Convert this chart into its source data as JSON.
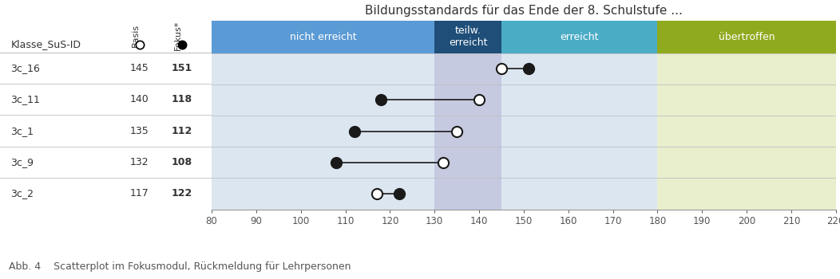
{
  "title": "Bildungsstandards für das Ende der 8. Schulstufe ...",
  "caption": "Abb. 4    Scatterplot im Fokusmodul, Rückmeldung für Lehrpersonen",
  "col1_header": "Klasse_SuS-ID",
  "col2_header": "Basis",
  "col3_header": "Fokus*",
  "students": [
    {
      "id": "3c_16",
      "basis": 145,
      "fokus": 151
    },
    {
      "id": "3c_11",
      "basis": 140,
      "fokus": 118
    },
    {
      "id": "3c_1",
      "basis": 135,
      "fokus": 112
    },
    {
      "id": "3c_9",
      "basis": 132,
      "fokus": 108
    },
    {
      "id": "3c_2",
      "basis": 117,
      "fokus": 122
    }
  ],
  "xmin": 80,
  "xmax": 220,
  "xticks": [
    80,
    90,
    100,
    110,
    120,
    130,
    140,
    150,
    160,
    170,
    180,
    190,
    200,
    210,
    220
  ],
  "zones": [
    {
      "label": "nicht erreicht",
      "xmin": 80,
      "xmax": 130,
      "color": "#5b9bd5",
      "text_color": "#ffffff",
      "multiline": false
    },
    {
      "label": "teilw.\nerreicht",
      "xmin": 130,
      "xmax": 145,
      "color": "#1f4e79",
      "text_color": "#ffffff",
      "multiline": true
    },
    {
      "label": "erreicht",
      "xmin": 145,
      "xmax": 180,
      "color": "#4bacc6",
      "text_color": "#ffffff",
      "multiline": false
    },
    {
      "label": "übertroffen",
      "xmin": 180,
      "xmax": 220,
      "color": "#8faa1e",
      "text_color": "#ffffff",
      "multiline": false
    }
  ],
  "zone_bg": [
    {
      "xmin": 80,
      "xmax": 130,
      "color": "#dce6f1"
    },
    {
      "xmin": 130,
      "xmax": 145,
      "color": "#c5cae0"
    },
    {
      "xmin": 145,
      "xmax": 180,
      "color": "#dce6f1"
    },
    {
      "xmin": 180,
      "xmax": 220,
      "color": "#e9eecc"
    }
  ],
  "basis_fc": "#ffffff",
  "basis_ec": "#1a1a1a",
  "fokus_fc": "#1a1a1a",
  "fokus_ec": "#1a1a1a",
  "marker_size": 90,
  "line_color": "#1a1a1a",
  "bg_color": "#ffffff",
  "sep_color": "#c0c0c0",
  "title_fontsize": 11,
  "label_fontsize": 9,
  "tick_fontsize": 8.5,
  "caption_fontsize": 9
}
